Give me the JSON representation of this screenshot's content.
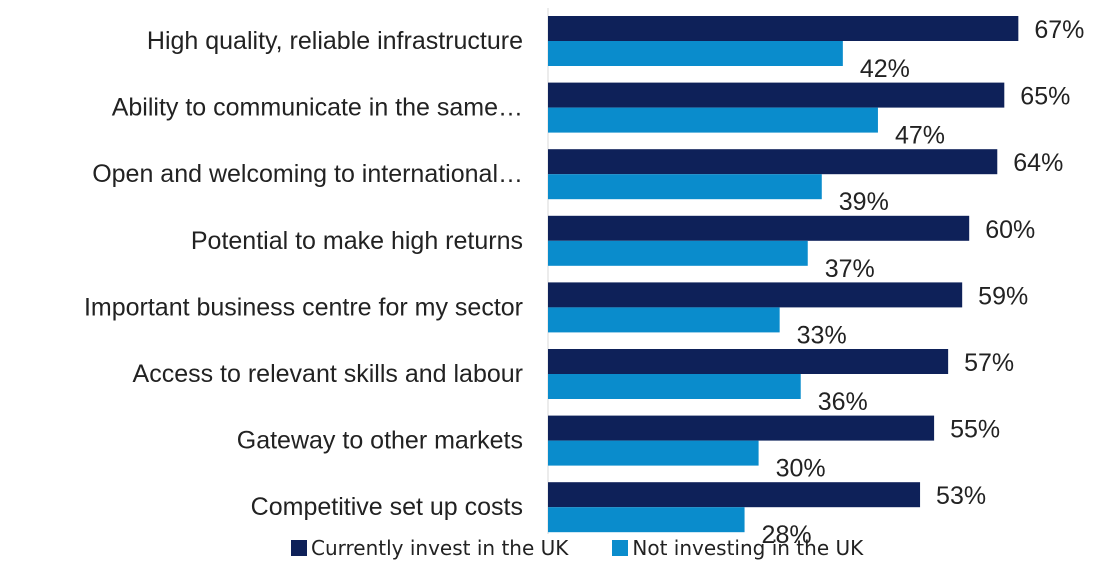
{
  "chart_data": {
    "type": "bar",
    "orientation": "horizontal",
    "categories": [
      "High quality, reliable infrastructure",
      "Ability to communicate in the same…",
      "Open and welcoming to international…",
      "Potential to make high returns",
      "Important business centre for my sector",
      "Access to relevant skills and labour",
      "Gateway to other markets",
      "Competitive set up costs"
    ],
    "series": [
      {
        "name": "Currently invest in the UK",
        "color": "#0e2159",
        "values": [
          67,
          65,
          64,
          60,
          59,
          57,
          55,
          53
        ],
        "labels": [
          "67%",
          "65%",
          "64%",
          "60%",
          "59%",
          "57%",
          "55%",
          "53%"
        ]
      },
      {
        "name": "Not investing in the UK",
        "color": "#0a8ccc",
        "values": [
          42,
          47,
          39,
          37,
          33,
          36,
          30,
          28
        ],
        "labels": [
          "42%",
          "47%",
          "39%",
          "37%",
          "33%",
          "36%",
          "30%",
          "28%"
        ]
      }
    ],
    "xlim": [
      0,
      100
    ],
    "grid": false,
    "legend_position": "bottom"
  }
}
